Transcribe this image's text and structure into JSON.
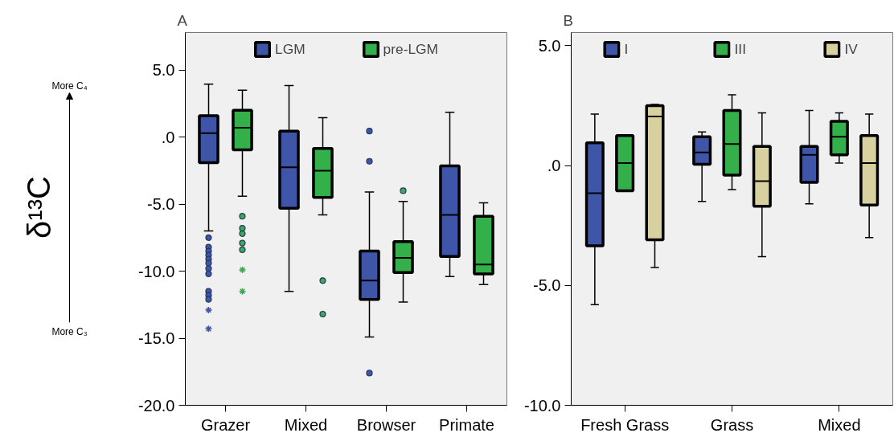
{
  "chart_data": [
    {
      "type": "box",
      "title": "A",
      "ylabel": "δ¹³C",
      "annotations": [
        "More C₄",
        "More C₃"
      ],
      "categories": [
        "Grazer",
        "Mixed",
        "Browser",
        "Primate"
      ],
      "series": [
        {
          "name": "LGM",
          "color": "#3f56a8",
          "boxes": [
            {
              "low": -7.0,
              "q1": -1.9,
              "median": 0.3,
              "q3": 1.6,
              "high": 3.95,
              "outliers": [
                -7.5,
                -8.2,
                -8.5,
                -8.8,
                -9.1,
                -9.4,
                -9.8,
                -10.2,
                -11.5,
                -11.8,
                -12.1,
                -12.9,
                -14.3
              ]
            },
            {
              "low": -11.5,
              "q1": -5.3,
              "median": -2.25,
              "q3": 0.45,
              "high": 3.85
            },
            {
              "low": -14.9,
              "q1": -12.1,
              "median": -10.7,
              "q3": -8.5,
              "high": -4.1,
              "outliers": [
                0.45,
                -1.8,
                -17.6
              ]
            },
            {
              "low": -10.4,
              "q1": -8.9,
              "median": -5.8,
              "q3": -2.15,
              "high": 1.85
            }
          ]
        },
        {
          "name": "pre-LGM",
          "color": "#33b04a",
          "boxes": [
            {
              "low": -4.4,
              "q1": -0.95,
              "median": 0.7,
              "q3": 2.0,
              "high": 3.5,
              "outliers": [
                -5.9,
                -6.8,
                -7.2,
                -7.9,
                -8.4,
                -9.9,
                -11.5
              ]
            },
            {
              "low": -5.8,
              "q1": -4.5,
              "median": -2.5,
              "q3": -0.85,
              "high": 1.45,
              "outliers": [
                -10.7,
                -13.2
              ]
            },
            {
              "low": -12.3,
              "q1": -10.1,
              "median": -9.0,
              "q3": -7.8,
              "high": -4.8,
              "outliers": [
                -4.0
              ]
            },
            {
              "low": -11.0,
              "q1": -10.2,
              "median": -9.5,
              "q3": -5.9,
              "high": -4.9
            }
          ]
        }
      ],
      "ylim": [
        -20,
        7.8
      ],
      "yticks": [
        {
          "value": 5,
          "label": "5.0"
        },
        {
          "value": 0,
          "label": ".0"
        },
        {
          "value": -5,
          "label": "-5.0"
        },
        {
          "value": -10,
          "label": "-10.0"
        },
        {
          "value": -15,
          "label": "-15.0"
        },
        {
          "value": -20,
          "label": "-20.0"
        }
      ],
      "legend": "top",
      "grid": false
    },
    {
      "type": "box",
      "title": "B",
      "categories": [
        "Fresh Grass",
        "Grass",
        "Mixed"
      ],
      "series": [
        {
          "name": "I",
          "color": "#3f56a8",
          "boxes": [
            {
              "low": -5.8,
              "q1": -3.35,
              "median": -1.15,
              "q3": 0.95,
              "high": 2.15
            },
            {
              "low": -1.5,
              "q1": 0.05,
              "median": 0.55,
              "q3": 1.2,
              "high": 1.4
            },
            {
              "low": -1.6,
              "q1": -0.7,
              "median": 0.45,
              "q3": 0.8,
              "high": 2.3
            }
          ]
        },
        {
          "name": "III",
          "color": "#33b04a",
          "boxes": [
            {
              "low": -1.05,
              "q1": -1.05,
              "median": 0.1,
              "q3": 1.25,
              "high": 1.25
            },
            {
              "low": -1.0,
              "q1": -0.4,
              "median": 0.9,
              "q3": 2.3,
              "high": 2.95
            },
            {
              "low": 0.1,
              "q1": 0.45,
              "median": 1.2,
              "q3": 1.85,
              "high": 2.2
            }
          ]
        },
        {
          "name": "IV",
          "color": "#d9d0a0",
          "boxes": [
            {
              "low": -4.25,
              "q1": -3.1,
              "median": 2.05,
              "q3": 2.5,
              "high": 2.55
            },
            {
              "low": -3.8,
              "q1": -1.7,
              "median": -0.65,
              "q3": 0.8,
              "high": 2.2
            },
            {
              "low": -3.0,
              "q1": -1.65,
              "median": 0.1,
              "q3": 1.25,
              "high": 2.15
            }
          ]
        }
      ],
      "ylim": [
        -10,
        5.55
      ],
      "yticks": [
        {
          "value": 5,
          "label": "5.0"
        },
        {
          "value": 0,
          "label": ".0"
        },
        {
          "value": -5,
          "label": "-5.0"
        },
        {
          "value": -10,
          "label": "-10.0"
        }
      ],
      "legend": "top",
      "grid": false
    }
  ]
}
